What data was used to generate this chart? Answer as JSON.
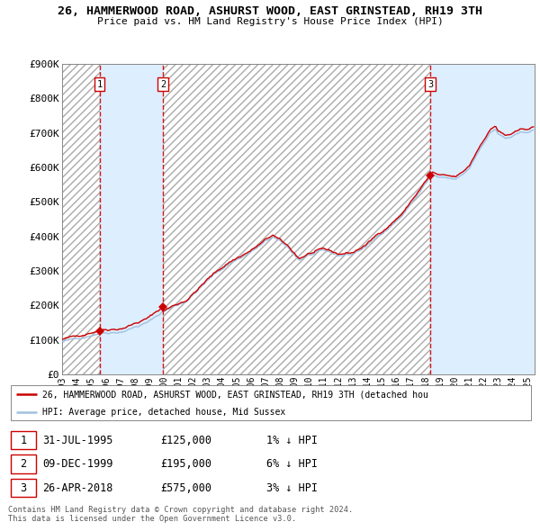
{
  "title1": "26, HAMMERWOOD ROAD, ASHURST WOOD, EAST GRINSTEAD, RH19 3TH",
  "title2": "Price paid vs. HM Land Registry's House Price Index (HPI)",
  "ylabel_vals": [
    "£0",
    "£100K",
    "£200K",
    "£300K",
    "£400K",
    "£500K",
    "£600K",
    "£700K",
    "£800K",
    "£900K"
  ],
  "ylabel_nums": [
    0,
    100000,
    200000,
    300000,
    400000,
    500000,
    600000,
    700000,
    800000,
    900000
  ],
  "ylim": [
    0,
    900000
  ],
  "xstart_year": 1993,
  "xend_year": 2025,
  "sale_dates": [
    "1995-07-31",
    "1999-12-09",
    "2018-04-26"
  ],
  "sale_prices": [
    125000,
    195000,
    575000
  ],
  "sale_labels": [
    "1",
    "2",
    "3"
  ],
  "hpi_line_color": "#a0c0e0",
  "price_line_color": "#cc0000",
  "vline_color": "#cc0000",
  "marker_color": "#cc0000",
  "hatched_bg": "#d8e8f0",
  "owned_bg": "#ddeeff",
  "grid_color": "#b8cfe0",
  "legend_line1": "26, HAMMERWOOD ROAD, ASHURST WOOD, EAST GRINSTEAD, RH19 3TH (detached hou",
  "legend_line2": "HPI: Average price, detached house, Mid Sussex",
  "note": "Contains HM Land Registry data © Crown copyright and database right 2024.\nThis data is licensed under the Open Government Licence v3.0.",
  "table_rows": [
    [
      "1",
      "31-JUL-1995",
      "£125,000",
      "1% ↓ HPI"
    ],
    [
      "2",
      "09-DEC-1999",
      "£195,000",
      "6% ↓ HPI"
    ],
    [
      "3",
      "26-APR-2018",
      "£575,000",
      "3% ↓ HPI"
    ]
  ]
}
